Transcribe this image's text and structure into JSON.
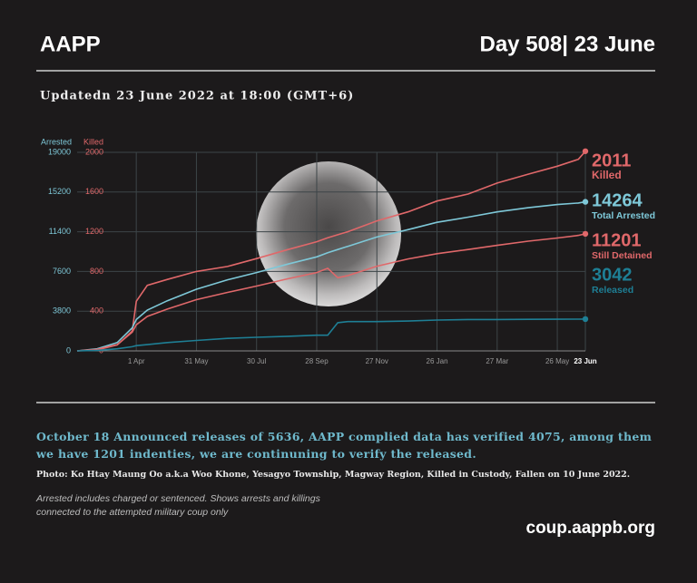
{
  "header": {
    "brand": "AAPP",
    "day": "Day 508| 23 June"
  },
  "subtitle": "Updatedn 23 June 2022 at 18:00 (GMT+6)",
  "chart_data": {
    "type": "line",
    "ylabel": "Arrested",
    "y2label": "Killed",
    "x": [
      0,
      20,
      40,
      55,
      59,
      70,
      90,
      119,
      150,
      179,
      210,
      239,
      250,
      260,
      270,
      299,
      330,
      359,
      390,
      419,
      450,
      479,
      500,
      507
    ],
    "xlim": [
      0,
      507
    ],
    "xticks": [
      {
        "value": 59,
        "label": "1 Apr"
      },
      {
        "value": 119,
        "label": "31 May"
      },
      {
        "value": 179,
        "label": "30 Jul"
      },
      {
        "value": 239,
        "label": "28 Sep"
      },
      {
        "value": 299,
        "label": "27 Nov"
      },
      {
        "value": 359,
        "label": "26 Jan"
      },
      {
        "value": 419,
        "label": "27 Mar"
      },
      {
        "value": 479,
        "label": "26 May"
      },
      {
        "value": 507,
        "label": "23 Jun"
      }
    ],
    "ylim": [
      0,
      19000
    ],
    "yticks": [
      0,
      3800,
      7600,
      11400,
      15200,
      19000
    ],
    "y2lim": [
      0,
      2000
    ],
    "y2ticks": [
      0,
      400,
      800,
      1200,
      1600,
      2000
    ],
    "ylabel_color": "#7ec8d8",
    "y2label_color": "#e0686a",
    "grid": true,
    "series": [
      {
        "name": "Killed",
        "axis": "y2",
        "color": "#e0686a",
        "values": [
          0,
          10,
          60,
          200,
          500,
          660,
          720,
          800,
          850,
          930,
          1020,
          1100,
          1140,
          1170,
          1200,
          1310,
          1400,
          1510,
          1580,
          1690,
          1780,
          1860,
          1930,
          2011
        ]
      },
      {
        "name": "Total Arrested",
        "color": "#7ec8d8",
        "values": [
          0,
          200,
          800,
          2200,
          3000,
          3900,
          4800,
          5900,
          6800,
          7500,
          8300,
          9000,
          9400,
          9700,
          10000,
          10900,
          11600,
          12300,
          12800,
          13300,
          13700,
          14000,
          14150,
          14264
        ]
      },
      {
        "name": "Still Detained",
        "color": "#e0686a",
        "values": [
          0,
          150,
          600,
          1800,
          2500,
          3300,
          4000,
          4900,
          5600,
          6200,
          6900,
          7500,
          7900,
          7000,
          7200,
          8100,
          8800,
          9300,
          9700,
          10100,
          10500,
          10800,
          11050,
          11201
        ]
      },
      {
        "name": "Released",
        "color": "#1e7f95",
        "values": [
          0,
          50,
          200,
          400,
          500,
          600,
          800,
          1000,
          1200,
          1300,
          1400,
          1500,
          1500,
          2700,
          2800,
          2800,
          2850,
          2950,
          3000,
          3000,
          3020,
          3030,
          3040,
          3042
        ]
      }
    ]
  },
  "note": "October 18 Announced releases of 5636, AAPP complied data has verified 4075, among them we have 1201 indenties, we are continuning to verify the released.",
  "photo_caption": "Photo:  Ko Htay Maung Oo a.k.a Woo Khone, Yesagyo Township, Magway Region, Killed in Custody, Fallen on 10 June 2022.",
  "footnote": [
    "Arrested includes charged or sentenced. Shows arrests and killings",
    "connected to the attempted military coup only"
  ],
  "url": "coup.aappb.org"
}
